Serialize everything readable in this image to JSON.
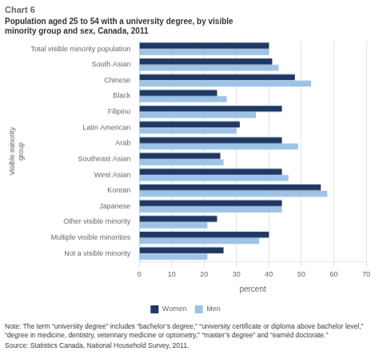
{
  "chart_data": {
    "type": "bar",
    "orientation": "horizontal",
    "title": "Chart 6",
    "subtitle": "Population aged 25 to 54 with a university degree, by visible\nminority group and sex, Canada, 2011",
    "xlabel": "percent",
    "ylabel": "Visible minority\ngroup",
    "categories": [
      "Total visible minority population",
      "South Asian",
      "Chinese",
      "Black",
      "Filipino",
      "Latin American",
      "Arab",
      "Southeast Asian",
      "West Asian",
      "Korean",
      "Japanese",
      "Other visible minority",
      "Multiple visible minorities",
      "Not a visible minority"
    ],
    "series": [
      {
        "name": "Women",
        "color": "#1F3864",
        "values": [
          40,
          41,
          48,
          24,
          44,
          31,
          44,
          25,
          44,
          56,
          44,
          24,
          40,
          26
        ]
      },
      {
        "name": "Men",
        "color": "#9DC3E6",
        "values": [
          40,
          43,
          53,
          27,
          36,
          30,
          49,
          26,
          46,
          58,
          44,
          21,
          37,
          21
        ]
      }
    ],
    "xlim": [
      0,
      70
    ],
    "xticks": [
      0,
      10,
      20,
      30,
      40,
      50,
      60,
      70
    ],
    "grid": true,
    "legend": "bottom",
    "annotations": [
      "Note: The term “university degree” includes “bachelor’s degree,” “university certificate or diploma above bachelor level,” “degree in medicine, dentistry, veterinary medicine or optometry,” “master’s degree” and “earnéd doctorate.”",
      "Source: Statistics Canada, National Household Survey, 2011."
    ]
  }
}
